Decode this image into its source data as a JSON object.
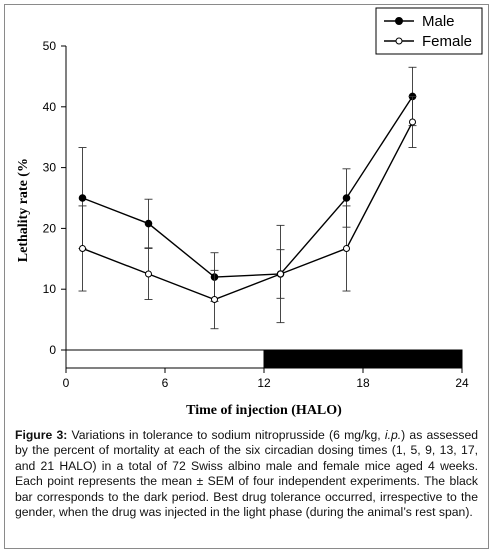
{
  "chart_data": {
    "type": "line",
    "xlabel": "Time of injection (HALO)",
    "ylabel": "Lethality rate (%",
    "xlim": [
      0,
      24
    ],
    "ylim": [
      0,
      50
    ],
    "x_ticks": [
      "0",
      "6",
      "12",
      "18",
      "24"
    ],
    "y_ticks": [
      "0",
      "10",
      "20",
      "30",
      "40",
      "50"
    ],
    "x": [
      1,
      5,
      9,
      13,
      17,
      21
    ],
    "series": [
      {
        "name": "Male",
        "marker": "filled-circle",
        "color": "#000000",
        "values": [
          25,
          20.8,
          12,
          12.5,
          25,
          41.7
        ],
        "error": [
          8.3,
          4,
          4,
          4,
          4.8,
          4.8
        ]
      },
      {
        "name": "Female",
        "marker": "open-circle",
        "color": "#000000",
        "values": [
          16.7,
          12.5,
          8.3,
          12.5,
          16.7,
          37.5
        ],
        "error": [
          7,
          4.2,
          4.8,
          8,
          7,
          4.2
        ]
      }
    ],
    "light_dark_bar": [
      {
        "from": 0,
        "to": 12,
        "phase": "light",
        "color": "#ffffff"
      },
      {
        "from": 12,
        "to": 24,
        "phase": "dark",
        "color": "#000000"
      }
    ],
    "legend_position": "top-right",
    "grid": false
  },
  "caption": {
    "label": "Figure 3:",
    "text_1": " Variations in tolerance to sodium nitroprusside (6 mg/kg, ",
    "italic": "i.p.",
    "text_2": ") as assessed by the percent of mortality at each of the six circadian dosing times (1, 5, 9, 13, 17, and 21 HALO) in a total of 72 Swiss albino male and female mice aged 4 weeks. Each point represents the mean ± SEM of four independent experiments. The black bar corresponds to the dark period. Best drug tolerance occurred, irrespective to the gender, when the drug was injected in the light phase (during the animal’s rest span)."
  }
}
